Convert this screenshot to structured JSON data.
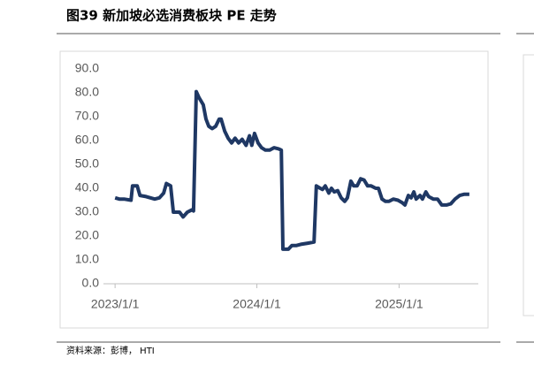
{
  "title": "图39 新加坡必选消费板块 PE 走势",
  "source": "资料来源：彭博， HTI",
  "chart_data": {
    "type": "line",
    "x": [
      "2023/1/1",
      "2023/1/12",
      "2023/1/24",
      "2023/2/11",
      "2023/2/15",
      "2023/2/27",
      "2023/3/6",
      "2023/3/22",
      "2023/4/2",
      "2023/4/13",
      "2023/4/25",
      "2023/5/6",
      "2023/5/13",
      "2023/5/24",
      "2023/5/31",
      "2023/6/16",
      "2023/6/25",
      "2023/7/6",
      "2023/7/18",
      "2023/7/22",
      "2023/7/29",
      "2023/8/5",
      "2023/8/16",
      "2023/8/23",
      "2023/8/30",
      "2023/9/8",
      "2023/9/17",
      "2023/9/26",
      "2023/10/1",
      "2023/10/10",
      "2023/10/19",
      "2023/10/28",
      "2023/11/6",
      "2023/11/15",
      "2023/11/24",
      "2023/12/4",
      "2023/12/13",
      "2023/12/19",
      "2023/12/26",
      "2024/1/4",
      "2024/1/13",
      "2024/1/23",
      "2024/2/3",
      "2024/2/14",
      "2024/2/26",
      "2024/3/4",
      "2024/3/8",
      "2024/3/22",
      "2024/3/31",
      "2024/4/11",
      "2024/4/23",
      "2024/5/11",
      "2024/5/27",
      "2024/6/2",
      "2024/6/12",
      "2024/6/18",
      "2024/6/25",
      "2024/7/4",
      "2024/7/11",
      "2024/7/18",
      "2024/7/27",
      "2024/8/5",
      "2024/8/14",
      "2024/8/21",
      "2024/8/30",
      "2024/9/6",
      "2024/9/15",
      "2024/9/24",
      "2024/10/3",
      "2024/10/12",
      "2024/10/21",
      "2024/11/2",
      "2024/11/9",
      "2024/11/18",
      "2024/11/27",
      "2024/12/6",
      "2024/12/17",
      "2024/12/29",
      "2025/1/9",
      "2025/1/16",
      "2025/1/25",
      "2025/2/1",
      "2025/2/8",
      "2025/2/14",
      "2025/2/24",
      "2025/3/2",
      "2025/3/11",
      "2025/3/18",
      "2025/3/30",
      "2025/4/10",
      "2025/4/21",
      "2025/5/3",
      "2025/5/14",
      "2025/5/25",
      "2025/6/6",
      "2025/6/17",
      "2025/7/1"
    ],
    "series": [
      {
        "color": "#1f3864",
        "values": [
          36,
          35.5,
          35.5,
          35,
          41,
          41,
          37,
          36.5,
          36,
          35.5,
          36,
          38,
          42,
          41,
          30,
          30,
          28,
          30,
          31,
          30.5,
          80.5,
          78,
          75,
          69,
          66,
          65,
          66,
          69,
          69,
          64,
          61,
          59,
          61,
          59,
          60.5,
          58,
          62,
          58,
          63,
          59,
          57,
          56,
          56,
          57,
          56.5,
          56,
          14.5,
          14.5,
          16,
          16,
          16.5,
          17,
          17.5,
          41,
          40,
          39.5,
          41,
          38,
          40,
          38.5,
          39,
          36,
          34.5,
          36,
          43,
          41,
          41,
          44,
          43.5,
          41,
          41,
          40,
          40,
          35.5,
          34.5,
          34.5,
          35.5,
          35,
          34,
          33,
          37,
          36,
          38.5,
          35.5,
          37,
          35.5,
          38.5,
          36.5,
          35.5,
          35.5,
          33,
          33,
          33.5,
          35.5,
          37,
          37.5,
          37.5
        ]
      }
    ],
    "xlim": [
      "2022/10/13",
      "2025/8/2"
    ],
    "xticks": [
      "2023/1/1",
      "2024/1/1",
      "2025/1/1"
    ],
    "ylim": [
      0,
      90
    ],
    "yticks": [
      {
        "value": 0,
        "label": "0.0"
      },
      {
        "value": 10,
        "label": "10.0"
      },
      {
        "value": 20,
        "label": "20.0"
      },
      {
        "value": 30,
        "label": "30.0"
      },
      {
        "value": 40,
        "label": "40.0"
      },
      {
        "value": 50,
        "label": "50.0"
      },
      {
        "value": 60,
        "label": "60.0"
      },
      {
        "value": 70,
        "label": "70.0"
      },
      {
        "value": 80,
        "label": "80.0"
      },
      {
        "value": 90,
        "label": "90.0"
      }
    ]
  }
}
